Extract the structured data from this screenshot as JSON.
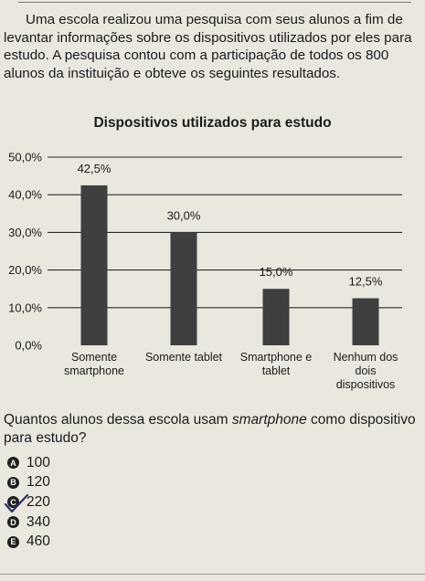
{
  "intro_text": "Uma escola realizou uma pesquisa com seus alunos a fim de levantar informações sobre os dispositivos utilizados por eles para estudo. A pesquisa contou com a participação de todos os 800 alunos da instituição e obteve os seguintes resultados.",
  "chart_data": {
    "type": "bar",
    "title": "Dispositivos utilizados para estudo",
    "categories": [
      [
        "Somente",
        "smartphone"
      ],
      [
        "Somente tablet"
      ],
      [
        "Smartphone e",
        "tablet"
      ],
      [
        "Nenhum dos",
        "dois",
        "dispositivos"
      ]
    ],
    "values": [
      42.5,
      30.0,
      15.0,
      12.5
    ],
    "value_labels": [
      "42,5%",
      "30,0%",
      "15,0%",
      "12,5%"
    ],
    "ylim": [
      0,
      50
    ],
    "yticks": [
      0,
      10,
      20,
      30,
      40,
      50
    ],
    "ytick_labels": [
      "0,0%",
      "10,0%",
      "20,0%",
      "30,0%",
      "40,0%",
      "50,0%"
    ],
    "grid": true,
    "bar_color": "#3f3f3f",
    "grid_color": "#2b2b2b"
  },
  "question": {
    "before": "Quantos alunos dessa escola usam ",
    "emphasis": "smartphone",
    "after": " como dispositivo para estudo?"
  },
  "options": [
    {
      "letter": "A",
      "text": "100"
    },
    {
      "letter": "B",
      "text": "120"
    },
    {
      "letter": "C",
      "text": "220"
    },
    {
      "letter": "D",
      "text": "340"
    },
    {
      "letter": "E",
      "text": "460"
    }
  ],
  "marked_option": "C"
}
